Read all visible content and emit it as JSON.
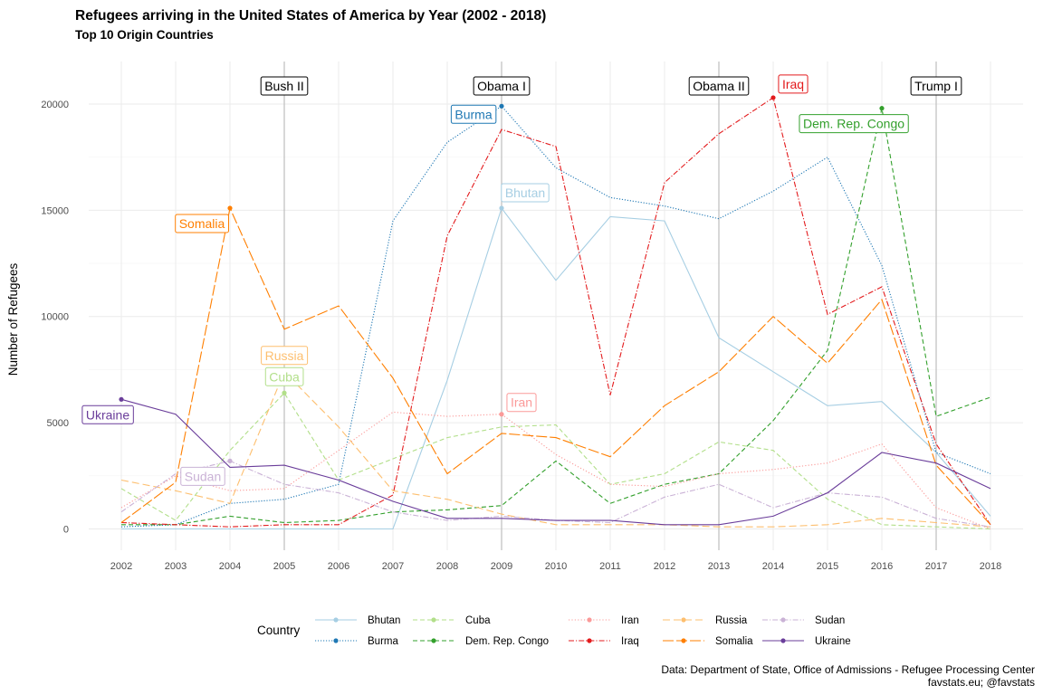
{
  "chart_data": {
    "type": "line",
    "title": "Refugees arriving in the United States of America by Year (2002 - 2018)",
    "subtitle": "Top 10 Origin Countries",
    "xlabel": "",
    "ylabel": "Number of Refugees",
    "x": [
      2002,
      2003,
      2004,
      2005,
      2006,
      2007,
      2008,
      2009,
      2010,
      2011,
      2012,
      2013,
      2014,
      2015,
      2016,
      2017,
      2018
    ],
    "xlim": [
      2001.4,
      2018.6
    ],
    "ylim": [
      -1000,
      22000
    ],
    "y_ticks": [
      0,
      5000,
      10000,
      15000,
      20000
    ],
    "legend_title": "Country",
    "legend_position": "bottom",
    "series": [
      {
        "name": "Bhutan",
        "color": "#a6cee3",
        "dash": "",
        "values": [
          0,
          0,
          0,
          0,
          0,
          0,
          7000,
          15100,
          11700,
          14700,
          14500,
          9000,
          7400,
          5800,
          6000,
          3600,
          600
        ],
        "label_x": 2009,
        "label_y": 15100
      },
      {
        "name": "Burma",
        "color": "#1f78b4",
        "dash": "1.2 1.8",
        "values": [
          100,
          200,
          1200,
          1400,
          2100,
          14500,
          18200,
          19900,
          17000,
          15600,
          15200,
          14600,
          15900,
          17500,
          12400,
          3600,
          2600
        ],
        "label_x": 2009,
        "label_y": 19900
      },
      {
        "name": "Cuba",
        "color": "#b2df8a",
        "dash": "5 3",
        "values": [
          1900,
          400,
          3700,
          6400,
          2300,
          3300,
          4300,
          4800,
          4900,
          2100,
          2600,
          4100,
          3700,
          1400,
          200,
          100,
          0
        ],
        "label_x": 2005,
        "label_y": 6400
      },
      {
        "name": "Dem. Rep. Congo",
        "color": "#33a02c",
        "dash": "5 3",
        "values": [
          200,
          200,
          600,
          300,
          400,
          800,
          900,
          1100,
          3200,
          1200,
          2100,
          2600,
          5100,
          8400,
          19800,
          5300,
          6200
        ],
        "label_x": 2016,
        "label_y": 19800
      },
      {
        "name": "Iran",
        "color": "#fb9a99",
        "dash": "1.2 2.2",
        "values": [
          1000,
          2500,
          1800,
          1900,
          3700,
          5500,
          5300,
          5400,
          3500,
          2100,
          2000,
          2600,
          2800,
          3100,
          4000,
          1000,
          0
        ],
        "label_x": 2009,
        "label_y": 5400
      },
      {
        "name": "Iraq",
        "color": "#e31a1c",
        "dash": "6 2 1.2 2",
        "values": [
          300,
          200,
          100,
          200,
          200,
          1600,
          13800,
          18800,
          18000,
          6300,
          16300,
          18600,
          20300,
          10100,
          11400,
          4000,
          200
        ],
        "label_x": 2014,
        "label_y": 20300
      },
      {
        "name": "Russia",
        "color": "#fdbf6f",
        "dash": "8 4",
        "values": [
          2300,
          1800,
          1200,
          7400,
          4800,
          1800,
          1400,
          700,
          200,
          200,
          200,
          100,
          100,
          200,
          500,
          300,
          100
        ],
        "label_x": 2005,
        "label_y": 7400
      },
      {
        "name": "Somalia",
        "color": "#ff7f00",
        "dash": "12 3",
        "values": [
          300,
          2200,
          15100,
          9400,
          10500,
          7100,
          2600,
          4500,
          4300,
          3400,
          5800,
          7400,
          10000,
          7800,
          10800,
          3000,
          200
        ],
        "label_x": 2004,
        "label_y": 15100
      },
      {
        "name": "Sudan",
        "color": "#cab2d6",
        "dash": "6 2 1.2 2",
        "values": [
          800,
          2600,
          3200,
          2100,
          1700,
          800,
          400,
          600,
          400,
          300,
          1500,
          2100,
          1000,
          1700,
          1500,
          500,
          100
        ],
        "label_x": 2004,
        "label_y": 3200
      },
      {
        "name": "Ukraine",
        "color": "#6a3d9a",
        "dash": "",
        "values": [
          6100,
          5400,
          2900,
          3000,
          2300,
          1300,
          500,
          500,
          400,
          400,
          200,
          200,
          600,
          1700,
          3600,
          3100,
          1900
        ],
        "label_x": 2002,
        "label_y": 6100
      }
    ],
    "annotations": [
      {
        "x": 2005,
        "text": "Bush II"
      },
      {
        "x": 2009,
        "text": "Obama I"
      },
      {
        "x": 2013,
        "text": "Obama II"
      },
      {
        "x": 2017,
        "text": "Trump I"
      }
    ]
  },
  "caption": {
    "line1": "Data: Department of State, Office of Admissions - Refugee Processing Center",
    "line2": "favstats.eu; @favstats"
  }
}
